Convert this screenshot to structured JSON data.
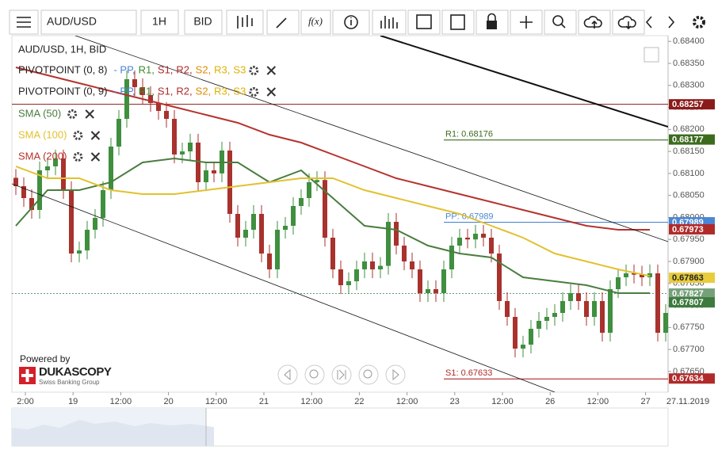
{
  "toolbar": {
    "symbol": "AUD/USD",
    "timeframe": "1H",
    "side": "BID",
    "function_button": "f(x)"
  },
  "chart_data": {
    "type": "candlestick",
    "instrument_label": "AUD/USD, 1H, BID",
    "x_labels": [
      "2:00",
      "19",
      "12:00",
      "20",
      "12:00",
      "21",
      "12:00",
      "22",
      "12:00",
      "23",
      "12:00",
      "26",
      "12:00",
      "27"
    ],
    "date_label": "27.11.2019",
    "ylim": [
      0.67603,
      0.68413
    ],
    "yticks": [
      {
        "value": 0.684,
        "label": "0.68400"
      },
      {
        "value": 0.6835,
        "label": "0.68350"
      },
      {
        "value": 0.683,
        "label": "0.68300"
      },
      {
        "value": 0.6825,
        "label": "0.68250"
      },
      {
        "value": 0.682,
        "label": "0.68200"
      },
      {
        "value": 0.6815,
        "label": "0.68150"
      },
      {
        "value": 0.681,
        "label": "0.68100"
      },
      {
        "value": 0.6805,
        "label": "0.68050"
      },
      {
        "value": 0.68,
        "label": "0.68000"
      },
      {
        "value": 0.6795,
        "label": "0.67950"
      },
      {
        "value": 0.679,
        "label": "0.67900"
      },
      {
        "value": 0.6785,
        "label": "0.67850"
      },
      {
        "value": 0.678,
        "label": "0.67800"
      },
      {
        "value": 0.6775,
        "label": "0.67750"
      },
      {
        "value": 0.677,
        "label": "0.67700"
      },
      {
        "value": 0.6765,
        "label": "0.67650"
      }
    ],
    "up_color": "#3f8f3f",
    "down_color": "#a8322d",
    "candles": [
      [
        0.6809,
        0.6811,
        0.68051,
        0.68071
      ],
      [
        0.68071,
        0.68091,
        0.68024,
        0.68044
      ],
      [
        0.68044,
        0.68064,
        0.67997,
        0.68017
      ],
      [
        0.68017,
        0.68127,
        0.67997,
        0.68107
      ],
      [
        0.68107,
        0.68136,
        0.68087,
        0.68116
      ],
      [
        0.68116,
        0.68154,
        0.68096,
        0.68134
      ],
      [
        0.68134,
        0.68154,
        0.68042,
        0.68062
      ],
      [
        0.68062,
        0.68082,
        0.67898,
        0.67918
      ],
      [
        0.67918,
        0.67945,
        0.67898,
        0.67925
      ],
      [
        0.67925,
        0.67992,
        0.67905,
        0.67972
      ],
      [
        0.67972,
        0.68019,
        0.67952,
        0.67999
      ],
      [
        0.67999,
        0.68082,
        0.67979,
        0.68062
      ],
      [
        0.68062,
        0.68181,
        0.68042,
        0.68161
      ],
      [
        0.68161,
        0.68244,
        0.68141,
        0.68224
      ],
      [
        0.68224,
        0.68334,
        0.68204,
        0.68314
      ],
      [
        0.68314,
        0.68334,
        0.68276,
        0.68296
      ],
      [
        0.68296,
        0.68316,
        0.68258,
        0.68278
      ],
      [
        0.68278,
        0.68298,
        0.6824,
        0.6826
      ],
      [
        0.6826,
        0.6828,
        0.68222,
        0.68242
      ],
      [
        0.68242,
        0.68262,
        0.68204,
        0.68224
      ],
      [
        0.68224,
        0.68244,
        0.68123,
        0.68143
      ],
      [
        0.68143,
        0.6817,
        0.68123,
        0.6815
      ],
      [
        0.6815,
        0.6819,
        0.6813,
        0.6817
      ],
      [
        0.6817,
        0.6819,
        0.6806,
        0.6808
      ],
      [
        0.6808,
        0.68127,
        0.6806,
        0.68107
      ],
      [
        0.68107,
        0.68127,
        0.6808,
        0.681
      ],
      [
        0.681,
        0.68172,
        0.6808,
        0.68152
      ],
      [
        0.68152,
        0.68172,
        0.67988,
        0.68008
      ],
      [
        0.68008,
        0.68028,
        0.67934,
        0.67954
      ],
      [
        0.67954,
        0.67992,
        0.67934,
        0.67972
      ],
      [
        0.67972,
        0.68028,
        0.67952,
        0.68008
      ],
      [
        0.68008,
        0.68028,
        0.67898,
        0.67918
      ],
      [
        0.67918,
        0.67938,
        0.67862,
        0.67882
      ],
      [
        0.67882,
        0.67992,
        0.67862,
        0.67972
      ],
      [
        0.67972,
        0.68001,
        0.67952,
        0.67981
      ],
      [
        0.67981,
        0.68046,
        0.67961,
        0.68026
      ],
      [
        0.68026,
        0.68064,
        0.68006,
        0.68044
      ],
      [
        0.68044,
        0.681,
        0.68024,
        0.6808
      ],
      [
        0.6808,
        0.68105,
        0.6806,
        0.68085
      ],
      [
        0.68085,
        0.68105,
        0.67934,
        0.67954
      ],
      [
        0.67954,
        0.67974,
        0.67862,
        0.67882
      ],
      [
        0.67882,
        0.67902,
        0.67826,
        0.67846
      ],
      [
        0.67846,
        0.67875,
        0.67826,
        0.67855
      ],
      [
        0.67855,
        0.67902,
        0.67835,
        0.67882
      ],
      [
        0.67882,
        0.6792,
        0.67862,
        0.679
      ],
      [
        0.679,
        0.6792,
        0.67862,
        0.67882
      ],
      [
        0.67882,
        0.6791,
        0.67862,
        0.6789
      ],
      [
        0.6789,
        0.6801,
        0.6787,
        0.6799
      ],
      [
        0.6799,
        0.6801,
        0.67916,
        0.67936
      ],
      [
        0.67936,
        0.67956,
        0.6788,
        0.679
      ],
      [
        0.679,
        0.6792,
        0.67862,
        0.67882
      ],
      [
        0.67882,
        0.67902,
        0.67808,
        0.67828
      ],
      [
        0.67828,
        0.67857,
        0.67808,
        0.67837
      ],
      [
        0.67837,
        0.67857,
        0.67808,
        0.67828
      ],
      [
        0.67828,
        0.67902,
        0.67808,
        0.67882
      ],
      [
        0.67882,
        0.67956,
        0.67862,
        0.67936
      ],
      [
        0.67936,
        0.67974,
        0.67916,
        0.67954
      ],
      [
        0.67954,
        0.67974,
        0.6793,
        0.6795
      ],
      [
        0.6795,
        0.67983,
        0.6793,
        0.67963
      ],
      [
        0.67963,
        0.67983,
        0.67934,
        0.67954
      ],
      [
        0.67954,
        0.67974,
        0.67898,
        0.67918
      ],
      [
        0.67918,
        0.67938,
        0.6779,
        0.6781
      ],
      [
        0.6781,
        0.6783,
        0.67754,
        0.67774
      ],
      [
        0.67774,
        0.67794,
        0.67682,
        0.67702
      ],
      [
        0.67702,
        0.67731,
        0.67682,
        0.67711
      ],
      [
        0.67711,
        0.67767,
        0.67691,
        0.67747
      ],
      [
        0.67747,
        0.67785,
        0.67727,
        0.67765
      ],
      [
        0.67765,
        0.67794,
        0.67745,
        0.67774
      ],
      [
        0.67774,
        0.67803,
        0.67754,
        0.67783
      ],
      [
        0.67783,
        0.6783,
        0.67763,
        0.6781
      ],
      [
        0.6781,
        0.67848,
        0.6779,
        0.67828
      ],
      [
        0.67828,
        0.67848,
        0.6779,
        0.6781
      ],
      [
        0.6781,
        0.6783,
        0.67754,
        0.67774
      ],
      [
        0.67774,
        0.6783,
        0.67754,
        0.6781
      ],
      [
        0.6781,
        0.6783,
        0.67718,
        0.67738
      ],
      [
        0.67738,
        0.67857,
        0.67718,
        0.67837
      ],
      [
        0.67837,
        0.67884,
        0.67817,
        0.67864
      ],
      [
        0.67864,
        0.67893,
        0.67844,
        0.67873
      ],
      [
        0.67873,
        0.67893,
        0.6785,
        0.6787
      ],
      [
        0.6787,
        0.6789,
        0.67844,
        0.67864
      ],
      [
        0.67864,
        0.67893,
        0.67844,
        0.67873
      ],
      [
        0.67873,
        0.67893,
        0.67718,
        0.67738
      ],
      [
        0.67738,
        0.67803,
        0.67718,
        0.67783
      ]
    ],
    "series": [
      {
        "name": "SMA (50)",
        "color": "#4a7d3f",
        "values": [
          0.67981,
          0.68062,
          0.68062,
          0.6808,
          0.68125,
          0.68134,
          0.68125,
          0.68125,
          0.6808,
          0.68107,
          0.68044,
          0.67981,
          0.67972,
          0.67936,
          0.67918,
          0.67909,
          0.67864,
          0.67855,
          0.67846,
          0.67828,
          0.67828
        ]
      },
      {
        "name": "SMA (100)",
        "color": "#e2c12f",
        "values": [
          0.68116,
          0.68089,
          0.68089,
          0.68062,
          0.68053,
          0.68053,
          0.68062,
          0.68071,
          0.6808,
          0.68089,
          0.68089,
          0.68062,
          0.68044,
          0.68026,
          0.68008,
          0.67981,
          0.67954,
          0.67918,
          0.679,
          0.67882,
          0.67867
        ]
      },
      {
        "name": "SMA (200)",
        "color": "#b5332e",
        "values": [
          0.68341,
          0.68323,
          0.68305,
          0.68287,
          0.68269,
          0.68251,
          0.68233,
          0.68215,
          0.68188,
          0.6817,
          0.68143,
          0.68116,
          0.68089,
          0.68071,
          0.68053,
          0.68035,
          0.68017,
          0.67999,
          0.67981,
          0.67972,
          0.67972
        ]
      }
    ],
    "pivots": [
      {
        "name": "PIVOTPOINT (0, 8)",
        "items": [
          {
            "label": "- PP,",
            "color": "#4a86d4"
          },
          {
            "label": "R1,",
            "color": "#3d8a2a"
          },
          {
            "label": "S1,",
            "color": "#b02a2a"
          },
          {
            "label": "R2,",
            "color": "#b02a2a"
          },
          {
            "label": "S2,",
            "color": "#e08a00"
          },
          {
            "label": "R3,",
            "color": "#e0b000"
          },
          {
            "label": "S3",
            "color": "#e0b000"
          }
        ]
      },
      {
        "name": "PIVOTPOINT (0, 9)",
        "items": [
          {
            "label": "- PP,",
            "color": "#4a86d4"
          },
          {
            "label": "R1,",
            "color": "#3d8a2a"
          },
          {
            "label": "S1,",
            "color": "#b02a2a"
          },
          {
            "label": "R2,",
            "color": "#b02a2a"
          },
          {
            "label": "S2,",
            "color": "#e08a00"
          },
          {
            "label": "R3,",
            "color": "#e0b000"
          },
          {
            "label": "S3",
            "color": "#e0b000"
          }
        ]
      }
    ],
    "hline": {
      "value": 0.68257,
      "color": "#8b1a1a"
    },
    "levels": [
      {
        "value": 0.68176,
        "label": "R1: 0.68176",
        "color": "#3d6b1e"
      },
      {
        "value": 0.67989,
        "label": "PP: 0.67989",
        "color": "#4a86d4"
      },
      {
        "value": 0.67633,
        "label": "S1: 0.67633",
        "color": "#b02a2a"
      }
    ],
    "current_price": 0.67827,
    "price_tags": [
      {
        "value": 0.68257,
        "label": "0.68257",
        "color": "#8b1a1a"
      },
      {
        "value": 0.68177,
        "label": "0.68177",
        "color": "#3d6b1e"
      },
      {
        "value": 0.67989,
        "label": "0.67989",
        "color": "#4a86d4"
      },
      {
        "value": 0.67973,
        "label": "0.67973",
        "color": "#b02a2a"
      },
      {
        "value": 0.67863,
        "label": "0.67863",
        "color": "#e8cc3c"
      },
      {
        "value": 0.67827,
        "label": "0.67827",
        "color": "#76a07a"
      },
      {
        "value": 0.67807,
        "label": "0.67807",
        "color": "#3d7a3d"
      },
      {
        "value": 0.67634,
        "label": "0.67634",
        "color": "#b02a2a"
      }
    ]
  },
  "branding": {
    "powered": "Powered by",
    "name": "DUKASCOPY",
    "sub": "Swiss Banking Group"
  }
}
